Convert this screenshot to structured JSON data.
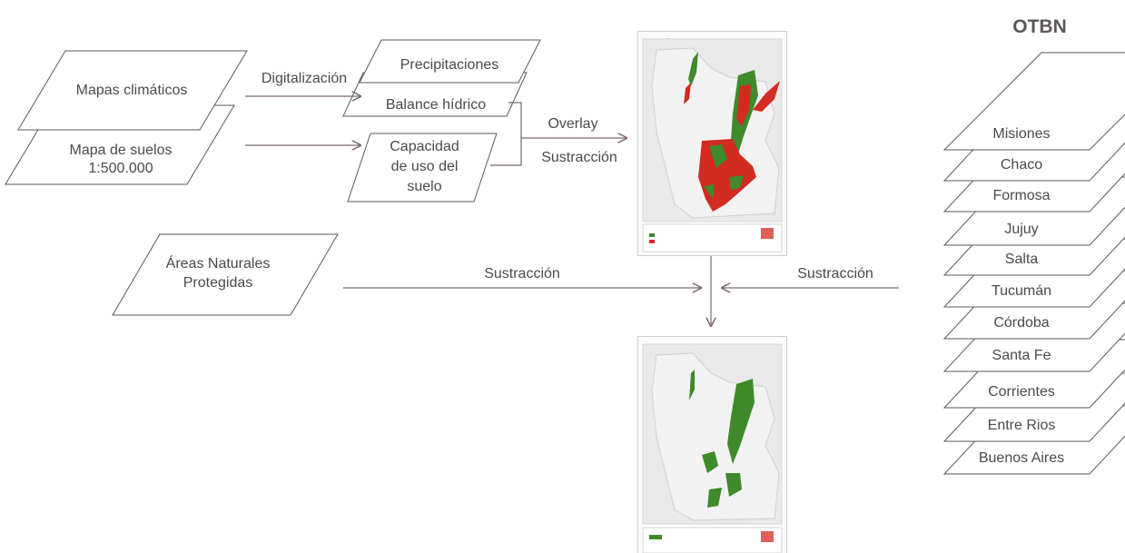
{
  "inputs": {
    "climate_maps": "Mapas climáticos",
    "soil_map_line1": "Mapa de suelos",
    "soil_map_line2": "1:500.000",
    "protected_areas_line1": "Áreas Naturales",
    "protected_areas_line2": "Protegidas"
  },
  "layers": {
    "precipitation": "Precipitaciones",
    "water_balance": "Balance hídrico",
    "land_use_line1": "Capacidad",
    "land_use_line2": "de uso del",
    "land_use_line3": "suelo"
  },
  "operations": {
    "digitalization": "Digitalización",
    "overlay": "Overlay",
    "subtraction_top": "Sustracción",
    "subtraction_left": "Sustracción",
    "subtraction_right": "Sustracción"
  },
  "otbn": {
    "title": "OTBN",
    "provinces": [
      "Misiones",
      "Chaco",
      "Formosa",
      "Jujuy",
      "Salta",
      "Tucumán",
      "Córdoba",
      "Santa Fe",
      "Corrientes",
      "Entre Rios",
      "Buenos Aires"
    ]
  },
  "colors": {
    "map_red": "#d22b22",
    "map_green": "#3f8a2a",
    "line": "#7a6a66"
  }
}
